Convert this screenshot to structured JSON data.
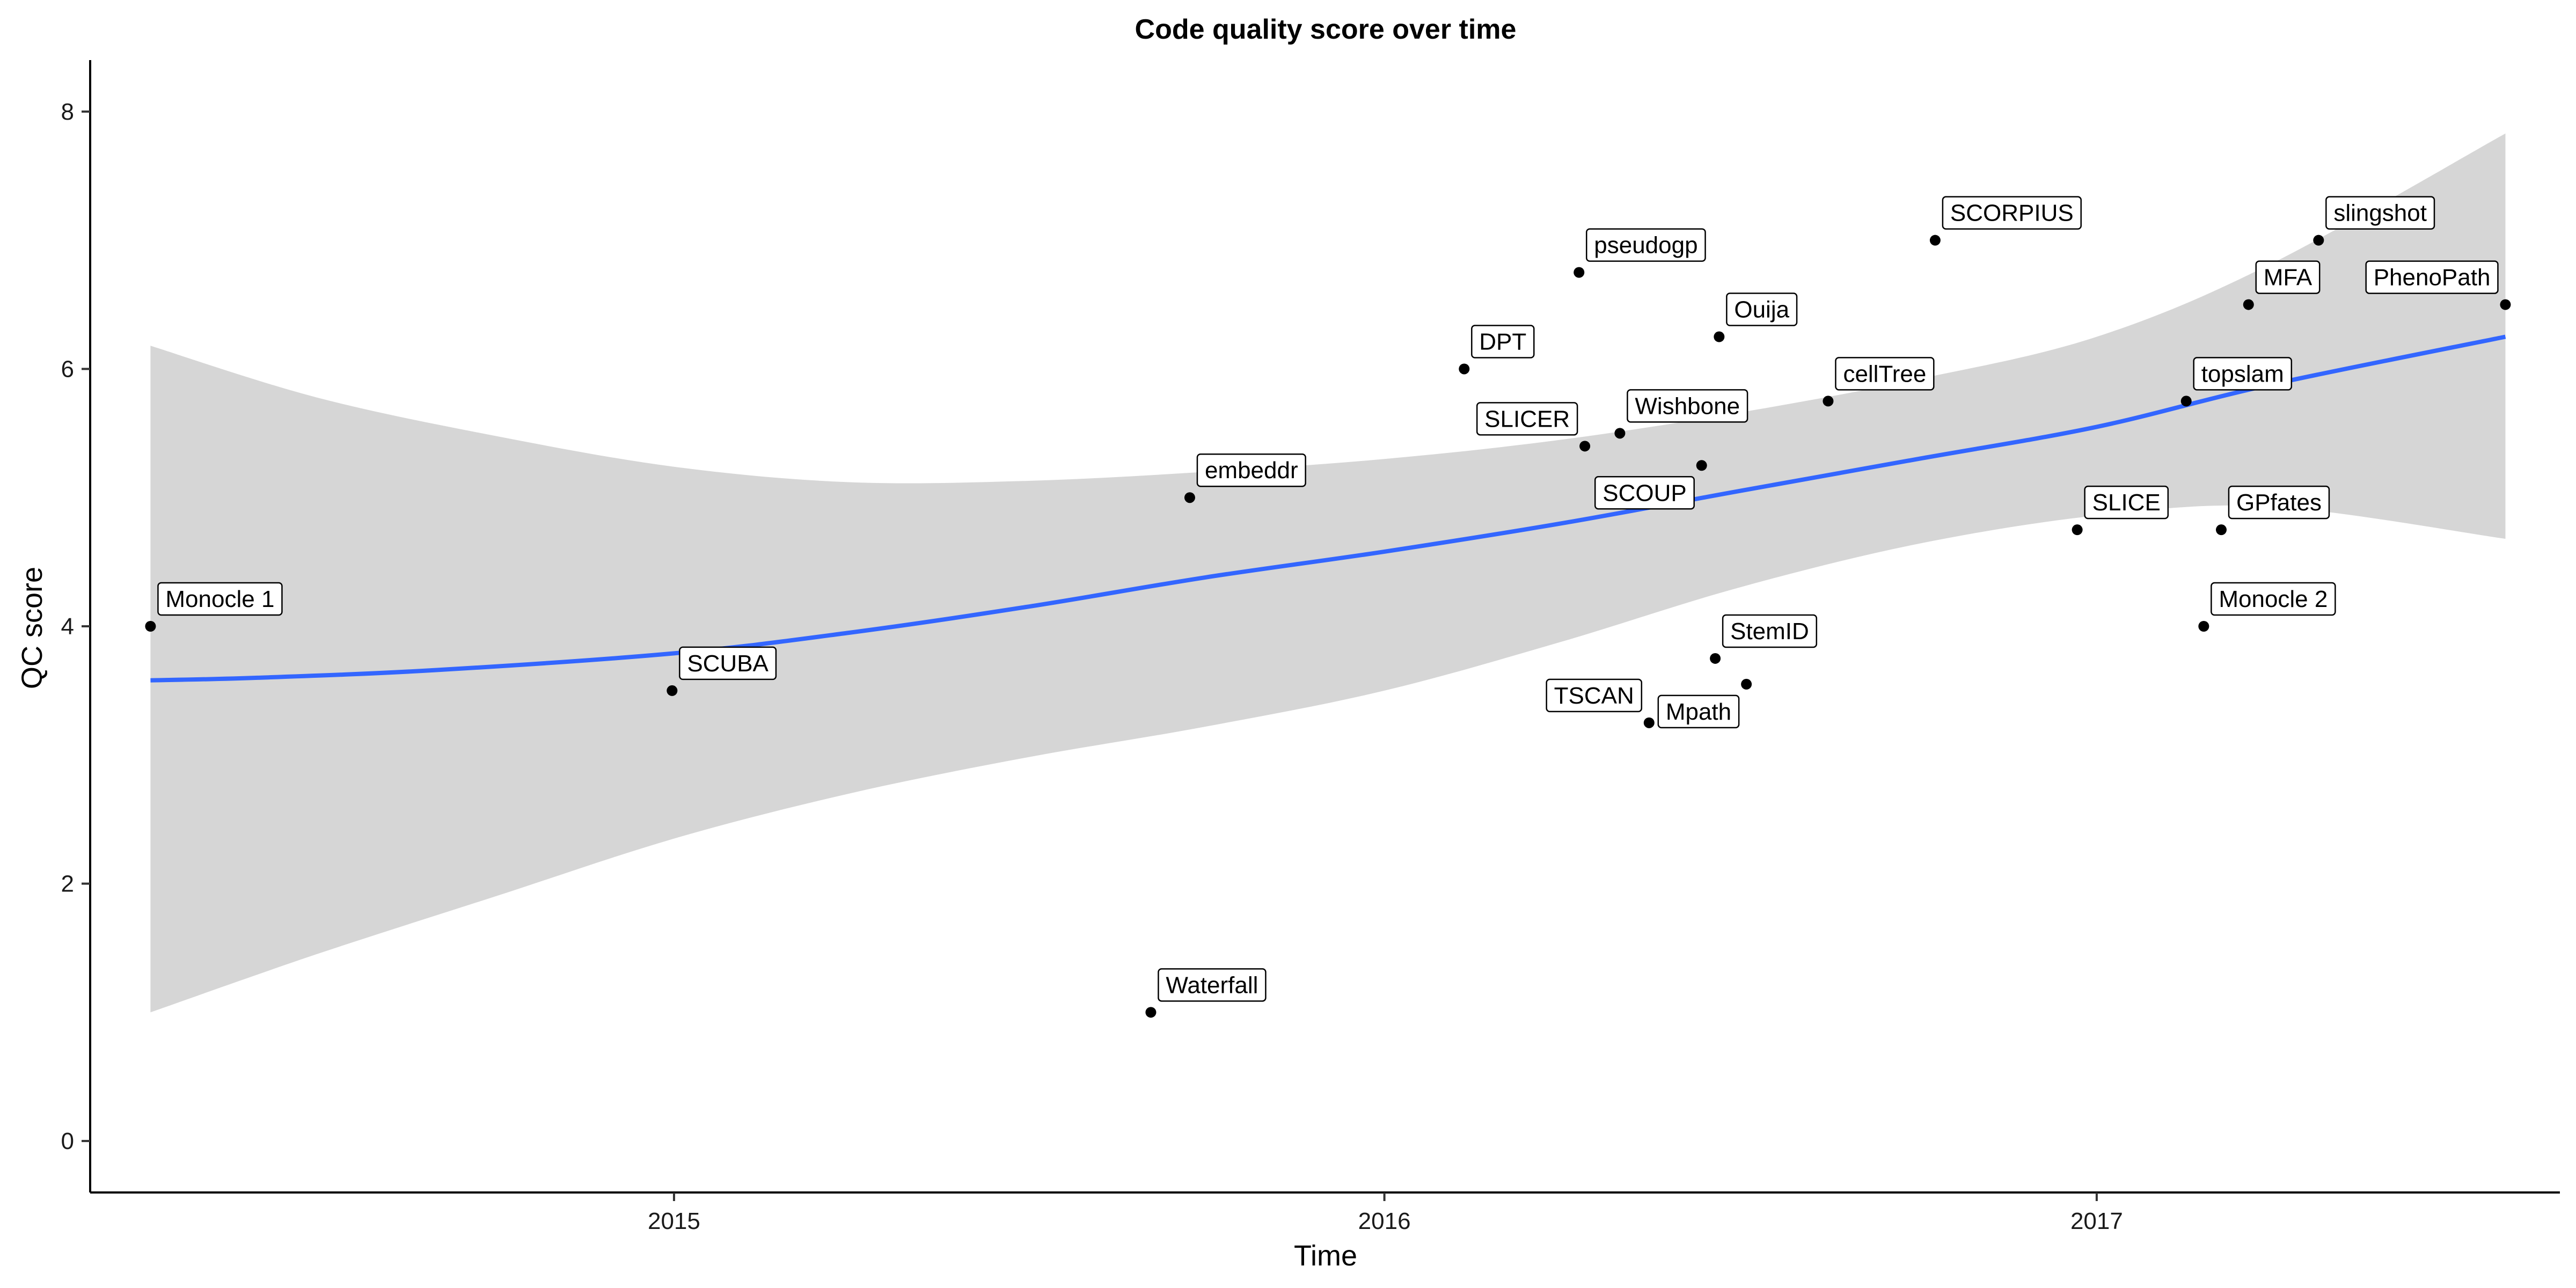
{
  "chart_data": {
    "type": "scatter",
    "title": "Code quality score over time",
    "xlabel": "Time",
    "ylabel": "QC score",
    "x_axis_type": "date",
    "xlim": [
      "2014-03-07",
      "2017-08-27"
    ],
    "ylim": [
      -0.4,
      8.4
    ],
    "x_ticks": [
      "2015-01-01",
      "2016-01-01",
      "2017-01-01"
    ],
    "x_tick_labels": [
      "2015",
      "2016",
      "2017"
    ],
    "y_ticks": [
      0,
      2,
      4,
      6,
      8
    ],
    "y_tick_labels": [
      "0",
      "2",
      "4",
      "6",
      "8"
    ],
    "grid": false,
    "legend": "none",
    "colors": {
      "points": "#000000",
      "trend": "#3366ff",
      "ribbon": "#d6d6d6"
    },
    "points": [
      {
        "label": "Monocle 1",
        "date": "2014-04-07",
        "value": 4.0
      },
      {
        "label": "SCUBA",
        "date": "2014-12-31",
        "value": 3.5
      },
      {
        "label": "Waterfall",
        "date": "2015-09-03",
        "value": 1.0
      },
      {
        "label": "embeddr",
        "date": "2015-09-23",
        "value": 5.0
      },
      {
        "label": "DPT",
        "date": "2016-02-11",
        "value": 6.0
      },
      {
        "label": "pseudogp",
        "date": "2016-04-10",
        "value": 6.75
      },
      {
        "label": "SLICER",
        "date": "2016-04-13",
        "value": 5.4
      },
      {
        "label": "Wishbone",
        "date": "2016-05-01",
        "value": 5.5
      },
      {
        "label": "TSCAN",
        "date": "2016-05-16",
        "value": 3.25
      },
      {
        "label": "SCOUP",
        "date": "2016-06-12",
        "value": 5.25
      },
      {
        "label": "StemID",
        "date": "2016-06-19",
        "value": 3.75
      },
      {
        "label": "Ouija",
        "date": "2016-06-21",
        "value": 6.25
      },
      {
        "label": "Mpath",
        "date": "2016-07-05",
        "value": 3.55
      },
      {
        "label": "cellTree",
        "date": "2016-08-16",
        "value": 5.75
      },
      {
        "label": "SCORPIUS",
        "date": "2016-10-10",
        "value": 7.0
      },
      {
        "label": "SLICE",
        "date": "2016-12-22",
        "value": 4.75
      },
      {
        "label": "GPfates",
        "date": "2017-03-06",
        "value": 4.75
      },
      {
        "label": "topslam",
        "date": "2017-02-16",
        "value": 5.75
      },
      {
        "label": "Monocle 2",
        "date": "2017-02-25",
        "value": 4.0
      },
      {
        "label": "MFA",
        "date": "2017-03-20",
        "value": 6.5
      },
      {
        "label": "slingshot",
        "date": "2017-04-25",
        "value": 7.0
      },
      {
        "label": "PhenoPath",
        "date": "2017-07-30",
        "value": 6.5
      }
    ],
    "trend": {
      "method": "loess",
      "line": [
        {
          "date": "2014-04-07",
          "value": 3.58
        },
        {
          "date": "2014-06-01",
          "value": 3.6
        },
        {
          "date": "2014-09-01",
          "value": 3.66
        },
        {
          "date": "2015-01-01",
          "value": 3.79
        },
        {
          "date": "2015-04-01",
          "value": 3.95
        },
        {
          "date": "2015-07-01",
          "value": 4.15
        },
        {
          "date": "2015-10-01",
          "value": 4.38
        },
        {
          "date": "2016-01-01",
          "value": 4.58
        },
        {
          "date": "2016-04-01",
          "value": 4.8
        },
        {
          "date": "2016-07-01",
          "value": 5.05
        },
        {
          "date": "2016-10-01",
          "value": 5.3
        },
        {
          "date": "2017-01-01",
          "value": 5.55
        },
        {
          "date": "2017-04-01",
          "value": 5.88
        },
        {
          "date": "2017-07-30",
          "value": 6.25
        }
      ],
      "ci_upper": [
        {
          "date": "2014-04-07",
          "value": 6.18
        },
        {
          "date": "2014-07-01",
          "value": 5.78
        },
        {
          "date": "2014-10-01",
          "value": 5.48
        },
        {
          "date": "2015-01-01",
          "value": 5.24
        },
        {
          "date": "2015-04-01",
          "value": 5.12
        },
        {
          "date": "2015-07-01",
          "value": 5.13
        },
        {
          "date": "2015-10-01",
          "value": 5.2
        },
        {
          "date": "2016-01-01",
          "value": 5.3
        },
        {
          "date": "2016-04-01",
          "value": 5.45
        },
        {
          "date": "2016-07-01",
          "value": 5.66
        },
        {
          "date": "2016-10-01",
          "value": 5.92
        },
        {
          "date": "2017-01-01",
          "value": 6.25
        },
        {
          "date": "2017-04-01",
          "value": 6.82
        },
        {
          "date": "2017-07-30",
          "value": 7.83
        }
      ],
      "ci_lower": [
        {
          "date": "2014-04-07",
          "value": 1.0
        },
        {
          "date": "2014-07-01",
          "value": 1.45
        },
        {
          "date": "2014-10-01",
          "value": 1.9
        },
        {
          "date": "2015-01-01",
          "value": 2.35
        },
        {
          "date": "2015-04-01",
          "value": 2.7
        },
        {
          "date": "2015-07-01",
          "value": 2.98
        },
        {
          "date": "2015-10-01",
          "value": 3.22
        },
        {
          "date": "2016-01-01",
          "value": 3.5
        },
        {
          "date": "2016-04-01",
          "value": 3.88
        },
        {
          "date": "2016-07-01",
          "value": 4.3
        },
        {
          "date": "2016-10-01",
          "value": 4.64
        },
        {
          "date": "2017-01-01",
          "value": 4.86
        },
        {
          "date": "2017-04-01",
          "value": 4.93
        },
        {
          "date": "2017-07-30",
          "value": 4.68
        }
      ]
    }
  }
}
